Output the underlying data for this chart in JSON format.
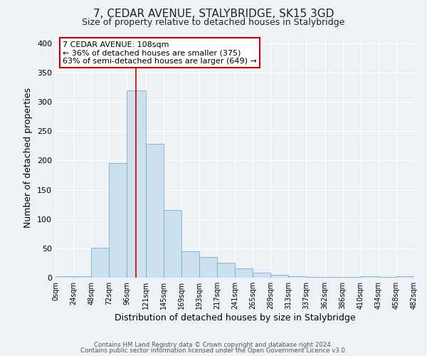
{
  "title1": "7, CEDAR AVENUE, STALYBRIDGE, SK15 3GD",
  "title2": "Size of property relative to detached houses in Stalybridge",
  "xlabel": "Distribution of detached houses by size in Stalybridge",
  "ylabel": "Number of detached properties",
  "bin_edges": [
    0,
    24,
    48,
    72,
    96,
    121,
    145,
    169,
    193,
    217,
    241,
    265,
    289,
    313,
    337,
    362,
    386,
    410,
    434,
    458,
    482
  ],
  "bar_heights": [
    2,
    2,
    51,
    196,
    319,
    228,
    116,
    45,
    35,
    25,
    16,
    8,
    5,
    3,
    1,
    1,
    1,
    2,
    1,
    2
  ],
  "bar_color": "#cce0f0",
  "bar_edge_color": "#7aaec8",
  "vline_x": 108,
  "vline_color": "#cc0000",
  "annotation_title": "7 CEDAR AVENUE: 108sqm",
  "annotation_line1": "← 36% of detached houses are smaller (375)",
  "annotation_line2": "63% of semi-detached houses are larger (649) →",
  "annotation_box_color": "#ffffff",
  "annotation_box_edge": "#cc0000",
  "ylim": [
    0,
    410
  ],
  "yticks": [
    0,
    50,
    100,
    150,
    200,
    250,
    300,
    350,
    400
  ],
  "footer1": "Contains HM Land Registry data © Crown copyright and database right 2024.",
  "footer2": "Contains public sector information licensed under the Open Government Licence v3.0.",
  "bg_color": "#eef2f7",
  "plot_bg_color": "#eef2f7",
  "grid_color": "#ffffff"
}
